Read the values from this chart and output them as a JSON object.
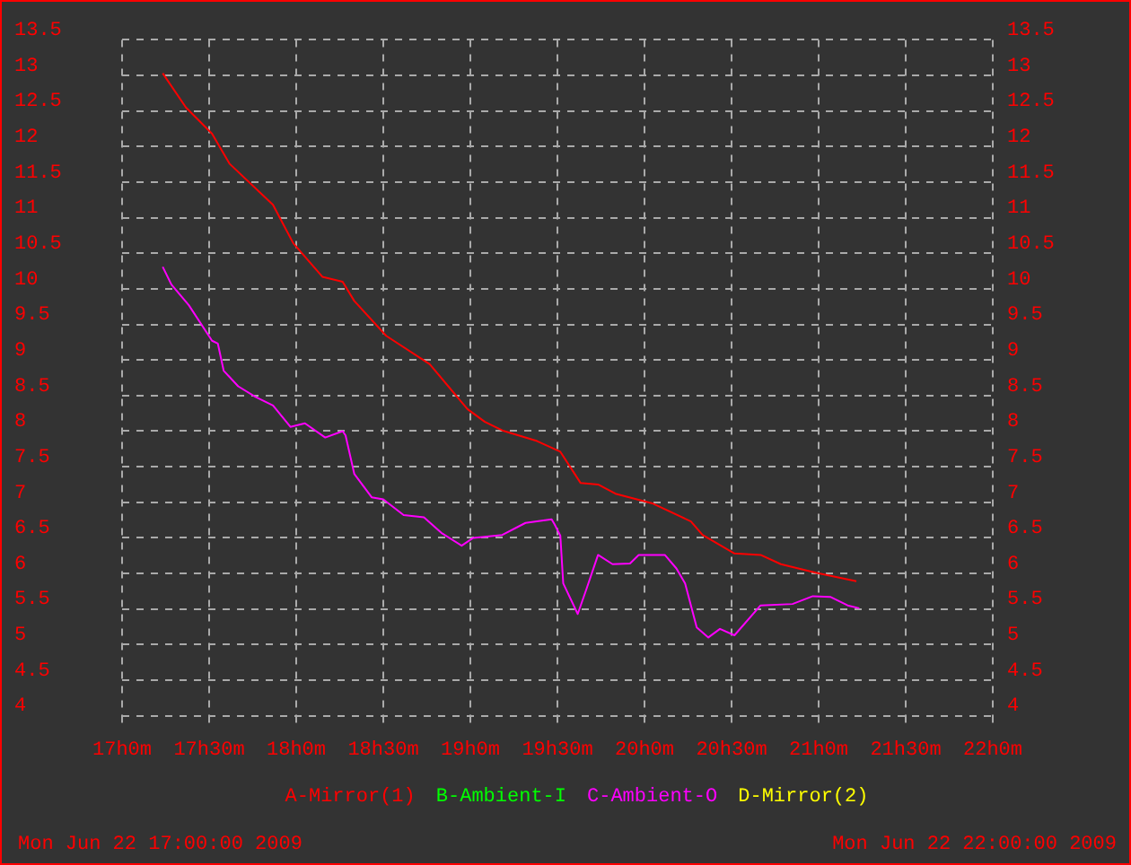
{
  "chart_data": {
    "type": "line",
    "xlim": [
      "2009-06-22T17:00",
      "2009-06-22T22:00"
    ],
    "xticks": [
      {
        "value": "2009-06-22T17:00",
        "label": "17h0m"
      },
      {
        "value": "2009-06-22T17:30",
        "label": "17h30m"
      },
      {
        "value": "2009-06-22T18:00",
        "label": "18h0m"
      },
      {
        "value": "2009-06-22T18:30",
        "label": "18h30m"
      },
      {
        "value": "2009-06-22T19:00",
        "label": "19h0m"
      },
      {
        "value": "2009-06-22T19:30",
        "label": "19h30m"
      },
      {
        "value": "2009-06-22T20:00",
        "label": "20h0m"
      },
      {
        "value": "2009-06-22T20:30",
        "label": "20h30m"
      },
      {
        "value": "2009-06-22T21:00",
        "label": "21h0m"
      },
      {
        "value": "2009-06-22T21:30",
        "label": "21h30m"
      },
      {
        "value": "2009-06-22T22:00",
        "label": "22h0m"
      }
    ],
    "ylim": [
      4,
      13.5
    ],
    "yticks": [
      4,
      4.5,
      5,
      5.5,
      6,
      6.5,
      7,
      7.5,
      8,
      8.5,
      9,
      9.5,
      10,
      10.5,
      11,
      11.5,
      12,
      12.5,
      13,
      13.5
    ],
    "y2lim": [
      4,
      13.5
    ],
    "y2ticks": [
      4,
      4.5,
      5,
      5.5,
      6,
      6.5,
      7,
      7.5,
      8,
      8.5,
      9,
      9.5,
      10,
      10.5,
      11,
      11.5,
      12,
      12.5,
      13,
      13.5
    ],
    "grid": true,
    "legend": "bottom",
    "annotations": [
      "Mon Jun 22 17:00:00 2009",
      "Mon Jun 22 22:00:00 2009"
    ],
    "series": [
      {
        "name": "A-Mirror(1)",
        "color": "#ff0000",
        "x": [
          "2009-06-22T17:14",
          "2009-06-22T17:22",
          "2009-06-22T17:31",
          "2009-06-22T17:37",
          "2009-06-22T17:52",
          "2009-06-22T17:59",
          "2009-06-22T18:09",
          "2009-06-22T18:16",
          "2009-06-22T18:20",
          "2009-06-22T18:31",
          "2009-06-22T18:46",
          "2009-06-22T18:59",
          "2009-06-22T19:05",
          "2009-06-22T19:11",
          "2009-06-22T19:23",
          "2009-06-22T19:31",
          "2009-06-22T19:38",
          "2009-06-22T19:44",
          "2009-06-22T19:50",
          "2009-06-22T20:03",
          "2009-06-22T20:16",
          "2009-06-22T20:20",
          "2009-06-22T20:31",
          "2009-06-22T20:40",
          "2009-06-22T20:47",
          "2009-06-22T20:59",
          "2009-06-22T21:13"
        ],
        "values": [
          13.03,
          12.55,
          12.18,
          11.76,
          11.18,
          10.64,
          10.17,
          10.1,
          9.83,
          9.34,
          8.94,
          8.31,
          8.13,
          8.01,
          7.86,
          7.71,
          7.27,
          7.25,
          7.12,
          6.98,
          6.73,
          6.54,
          6.28,
          6.26,
          6.13,
          6.01,
          5.89
        ]
      },
      {
        "name": "B-Ambient-I",
        "color": "#00ff00"
      },
      {
        "name": "C-Ambient-O",
        "color": "#ff00ff",
        "x": [
          "2009-06-22T17:14",
          "2009-06-22T17:17",
          "2009-06-22T17:23",
          "2009-06-22T17:31",
          "2009-06-22T17:33",
          "2009-06-22T17:35",
          "2009-06-22T17:40",
          "2009-06-22T17:46",
          "2009-06-22T17:52",
          "2009-06-22T17:58",
          "2009-06-22T18:03",
          "2009-06-22T18:10",
          "2009-06-22T18:16",
          "2009-06-22T18:17",
          "2009-06-22T18:20",
          "2009-06-22T18:26",
          "2009-06-22T18:30",
          "2009-06-22T18:37",
          "2009-06-22T18:44",
          "2009-06-22T18:50",
          "2009-06-22T18:57",
          "2009-06-22T19:01",
          "2009-06-22T19:11",
          "2009-06-22T19:19",
          "2009-06-22T19:28",
          "2009-06-22T19:29",
          "2009-06-22T19:31",
          "2009-06-22T19:32",
          "2009-06-22T19:37",
          "2009-06-22T19:40",
          "2009-06-22T19:44",
          "2009-06-22T19:49",
          "2009-06-22T19:55",
          "2009-06-22T19:58",
          "2009-06-22T20:07",
          "2009-06-22T20:11",
          "2009-06-22T20:14",
          "2009-06-22T20:18",
          "2009-06-22T20:22",
          "2009-06-22T20:26",
          "2009-06-22T20:31",
          "2009-06-22T20:40",
          "2009-06-22T20:51",
          "2009-06-22T20:58",
          "2009-06-22T21:04",
          "2009-06-22T21:10",
          "2009-06-22T21:14"
        ],
        "values": [
          10.31,
          10.06,
          9.77,
          9.27,
          9.23,
          8.85,
          8.63,
          8.48,
          8.36,
          8.06,
          8.11,
          7.91,
          8.0,
          7.94,
          7.4,
          7.07,
          7.04,
          6.82,
          6.79,
          6.57,
          6.39,
          6.5,
          6.54,
          6.71,
          6.76,
          6.69,
          6.53,
          5.86,
          5.43,
          5.78,
          6.26,
          6.13,
          6.14,
          6.26,
          6.26,
          6.07,
          5.86,
          5.24,
          5.1,
          5.22,
          5.13,
          5.55,
          5.57,
          5.68,
          5.67,
          5.55,
          5.51
        ]
      },
      {
        "name": "D-Mirror(2)",
        "color": "#ffff00"
      }
    ]
  }
}
